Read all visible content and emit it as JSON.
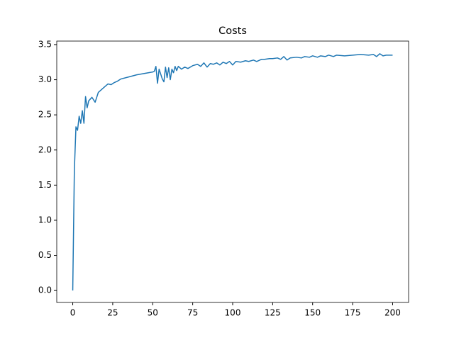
{
  "chart_data": {
    "type": "line",
    "title": "Costs",
    "x": [
      0,
      1,
      2,
      3,
      4,
      5,
      6,
      7,
      8,
      9,
      10,
      12,
      14,
      16,
      18,
      20,
      22,
      24,
      26,
      28,
      30,
      35,
      40,
      45,
      50,
      51,
      52,
      53,
      54,
      55,
      56,
      57,
      58,
      59,
      60,
      61,
      62,
      63,
      64,
      65,
      66,
      68,
      70,
      72,
      75,
      78,
      80,
      82,
      84,
      86,
      88,
      90,
      92,
      94,
      96,
      98,
      100,
      102,
      105,
      108,
      110,
      113,
      115,
      118,
      120,
      123,
      125,
      128,
      130,
      132,
      134,
      136,
      140,
      143,
      145,
      148,
      150,
      153,
      155,
      158,
      160,
      163,
      165,
      170,
      175,
      180,
      185,
      188,
      190,
      192,
      194,
      196,
      200
    ],
    "series": [
      {
        "color": "#1f77b4",
        "values": [
          0,
          1.7,
          2.33,
          2.28,
          2.48,
          2.38,
          2.56,
          2.38,
          2.76,
          2.6,
          2.7,
          2.75,
          2.68,
          2.82,
          2.86,
          2.9,
          2.94,
          2.93,
          2.96,
          2.98,
          3.01,
          3.04,
          3.07,
          3.09,
          3.11,
          3.12,
          3.19,
          2.95,
          3.15,
          3.08,
          3.01,
          2.97,
          3.18,
          3.03,
          3.17,
          3.0,
          3.15,
          3.1,
          3.19,
          3.13,
          3.19,
          3.15,
          3.18,
          3.16,
          3.2,
          3.22,
          3.19,
          3.24,
          3.18,
          3.23,
          3.22,
          3.24,
          3.21,
          3.25,
          3.23,
          3.26,
          3.21,
          3.26,
          3.25,
          3.27,
          3.26,
          3.28,
          3.26,
          3.29,
          3.29,
          3.3,
          3.3,
          3.31,
          3.29,
          3.33,
          3.28,
          3.31,
          3.32,
          3.31,
          3.33,
          3.32,
          3.34,
          3.32,
          3.34,
          3.33,
          3.35,
          3.33,
          3.35,
          3.34,
          3.35,
          3.36,
          3.35,
          3.36,
          3.33,
          3.37,
          3.34,
          3.35,
          3.35
        ]
      }
    ],
    "xlim": [
      -10,
      210
    ],
    "xticks": [
      0,
      25,
      50,
      75,
      100,
      125,
      150,
      175,
      200
    ],
    "ylim": [
      -0.17,
      3.55
    ],
    "yticks": [
      {
        "value": 0,
        "label": "0.0"
      },
      {
        "value": 0.5,
        "label": "0.5"
      },
      {
        "value": 1,
        "label": "1.0"
      },
      {
        "value": 1.5,
        "label": "1.5"
      },
      {
        "value": 2,
        "label": "2.0"
      },
      {
        "value": 2.5,
        "label": "2.5"
      },
      {
        "value": 3,
        "label": "3.0"
      },
      {
        "value": 3.5,
        "label": "3.5"
      }
    ]
  }
}
